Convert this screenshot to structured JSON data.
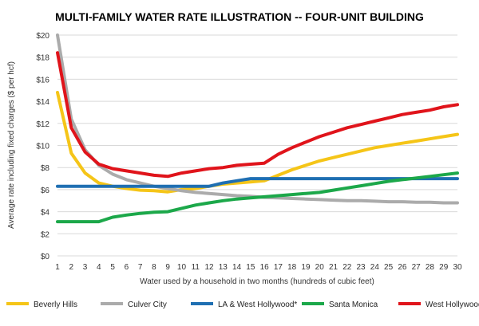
{
  "chart_data": {
    "type": "line",
    "title": "MULTI-FAMILY WATER RATE ILLUSTRATION -- FOUR-UNIT BUILDING",
    "xlabel": "Water used by a household in two months (hundreds of cubic feet)",
    "ylabel": "Average rate including fixed charges ($ per hcf)",
    "ylim": [
      0,
      20
    ],
    "yticks": [
      "$0",
      "$2",
      "$4",
      "$6",
      "$8",
      "$10",
      "$12",
      "$14",
      "$16",
      "$18",
      "$20"
    ],
    "x": [
      1,
      2,
      3,
      4,
      5,
      6,
      7,
      8,
      9,
      10,
      11,
      12,
      13,
      14,
      15,
      16,
      17,
      18,
      19,
      20,
      21,
      22,
      23,
      24,
      25,
      26,
      27,
      28,
      29,
      30
    ],
    "grid": true,
    "legend_position": "bottom",
    "series": [
      {
        "name": "Beverly Hills",
        "color": "#F5C518",
        "values": [
          14.8,
          9.3,
          7.5,
          6.6,
          6.3,
          6.1,
          5.95,
          5.9,
          5.8,
          6.0,
          6.1,
          6.3,
          6.5,
          6.6,
          6.7,
          6.8,
          7.3,
          7.8,
          8.2,
          8.6,
          8.9,
          9.2,
          9.5,
          9.8,
          10.0,
          10.2,
          10.4,
          10.6,
          10.8,
          11.0
        ]
      },
      {
        "name": "Culver City",
        "color": "#ABABAB",
        "values": [
          20.0,
          12.4,
          9.6,
          8.2,
          7.4,
          6.9,
          6.6,
          6.3,
          6.1,
          5.9,
          5.75,
          5.65,
          5.55,
          5.45,
          5.4,
          5.3,
          5.25,
          5.2,
          5.15,
          5.1,
          5.05,
          5.0,
          5.0,
          4.95,
          4.9,
          4.9,
          4.85,
          4.85,
          4.8,
          4.8
        ]
      },
      {
        "name": "LA & West Hollywood*",
        "color": "#1F6FB2",
        "values": [
          6.3,
          6.3,
          6.3,
          6.3,
          6.3,
          6.3,
          6.3,
          6.3,
          6.3,
          6.3,
          6.3,
          6.3,
          6.6,
          6.8,
          7.0,
          7.0,
          7.0,
          7.0,
          7.0,
          7.0,
          7.0,
          7.0,
          7.0,
          7.0,
          7.0,
          7.0,
          7.0,
          7.0,
          7.0,
          7.0
        ]
      },
      {
        "name": "Santa Monica",
        "color": "#1CA84A",
        "values": [
          3.1,
          3.1,
          3.1,
          3.1,
          3.5,
          3.7,
          3.85,
          3.95,
          4.0,
          4.3,
          4.6,
          4.8,
          5.0,
          5.15,
          5.25,
          5.35,
          5.45,
          5.55,
          5.65,
          5.75,
          5.95,
          6.15,
          6.35,
          6.55,
          6.75,
          6.9,
          7.05,
          7.2,
          7.35,
          7.5
        ]
      },
      {
        "name": "West Hollywood westside",
        "color": "#E0141B",
        "values": [
          18.4,
          11.6,
          9.4,
          8.3,
          7.9,
          7.7,
          7.5,
          7.3,
          7.2,
          7.5,
          7.7,
          7.9,
          8.0,
          8.2,
          8.3,
          8.4,
          9.2,
          9.8,
          10.3,
          10.8,
          11.2,
          11.6,
          11.9,
          12.2,
          12.5,
          12.8,
          13.0,
          13.2,
          13.5,
          13.7
        ]
      }
    ]
  }
}
